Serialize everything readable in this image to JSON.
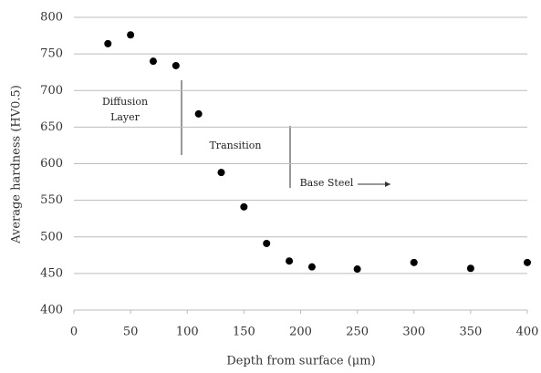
{
  "chart_data": {
    "type": "scatter",
    "x_label": "Depth from surface (μm)",
    "y_label": "Average hardness (HV0.5)",
    "x": [
      30,
      50,
      70,
      90,
      110,
      130,
      150,
      170,
      190,
      210,
      250,
      300,
      350,
      400
    ],
    "values": [
      764,
      776,
      740,
      734,
      668,
      588,
      541,
      491,
      467,
      459,
      456,
      465,
      457,
      465
    ],
    "color": "#000000",
    "xlim": [
      0,
      400
    ],
    "xticks": [
      0,
      50,
      100,
      150,
      200,
      250,
      300,
      350,
      400
    ],
    "ylim": [
      400,
      800
    ],
    "yticks": [
      400,
      450,
      500,
      550,
      600,
      650,
      700,
      750,
      800
    ],
    "grid": true,
    "annotations": [
      {
        "lines": [
          "Diffusion",
          "Layer"
        ]
      },
      {
        "lines": [
          "Transition"
        ]
      },
      {
        "lines": [
          "Base Steel"
        ]
      }
    ]
  }
}
